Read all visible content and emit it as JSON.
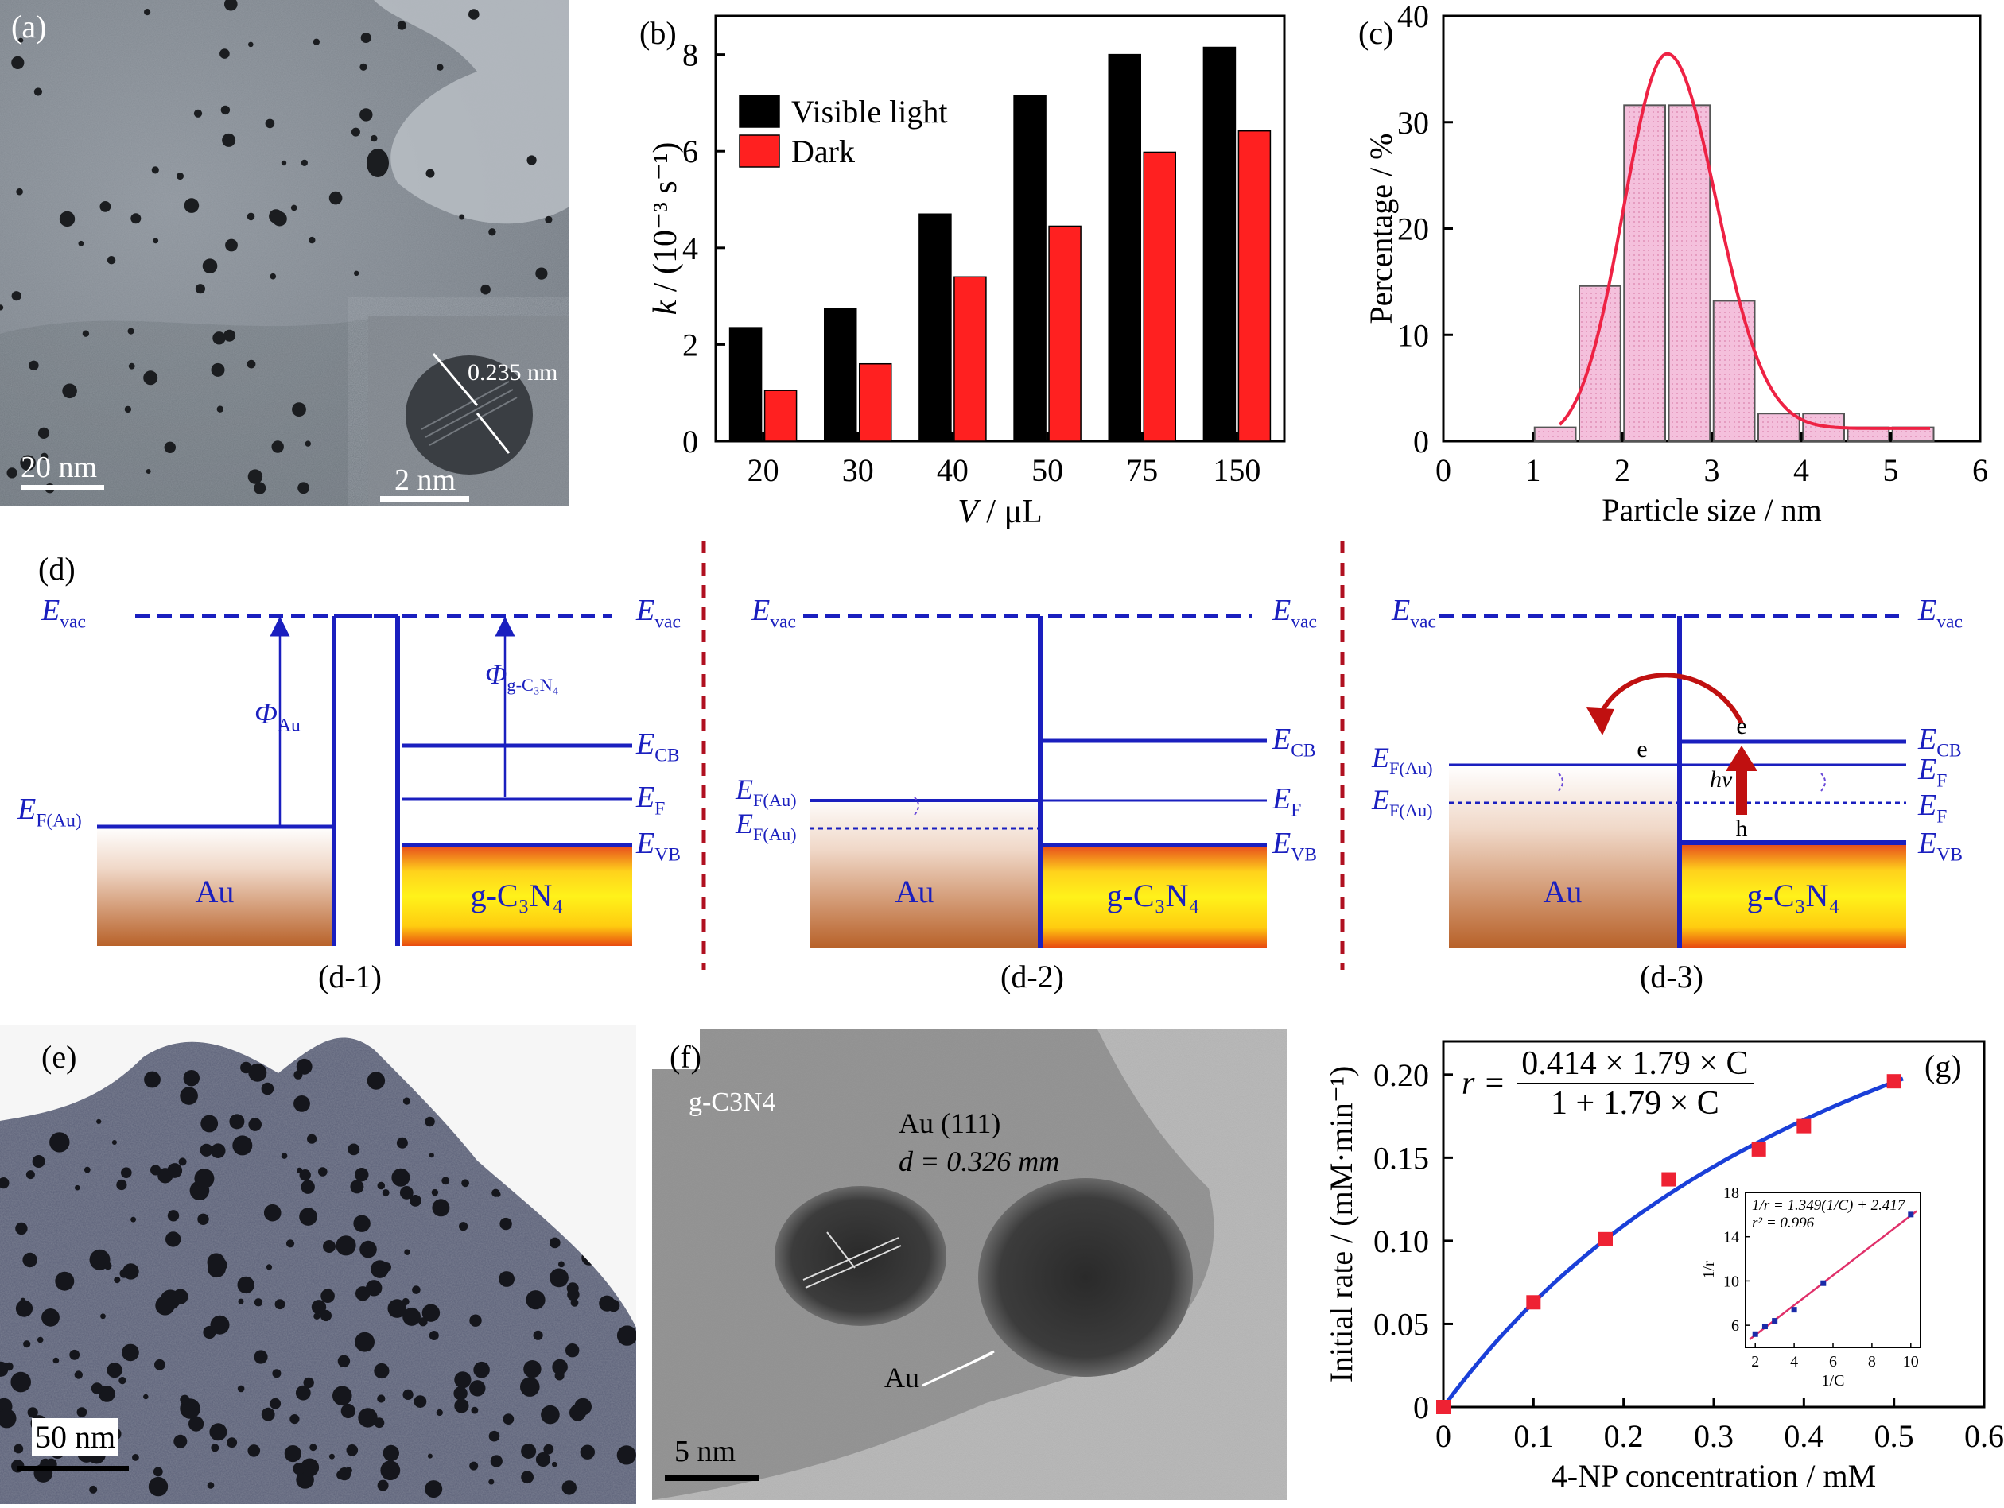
{
  "panels": {
    "a": {
      "label": "(a)",
      "scale_main": "20 nm",
      "scale_inset": "2 nm",
      "lattice": "0.235 nm"
    },
    "b": {
      "label": "(b)"
    },
    "c": {
      "label": "(c)"
    },
    "d": {
      "label": "(d)",
      "sub": [
        "(d-1)",
        "(d-2)",
        "(d-3)"
      ]
    },
    "e": {
      "label": "(e)",
      "scale": "50 nm"
    },
    "f": {
      "label": "(f)",
      "material": "g-C3N4",
      "plane": "Au (111)",
      "dspacing": "d = 0.326 mm",
      "au": "Au",
      "scale": "5 nm"
    },
    "g": {
      "label": "(g)",
      "equation_lhs": "r =",
      "equation_num": "0.414 × 1.79 × C",
      "equation_den": "1 + 1.79 × C",
      "inset_eq1": "1/r = 1.349(1/C) + 2.417",
      "inset_eq2": "r² = 0.996",
      "inset_ylabel": "1/r",
      "inset_xlabel": "1/C"
    }
  },
  "diagram": {
    "evac": "E",
    "evac_sub": "vac",
    "ecb": "E",
    "ecb_sub": "CB",
    "ef": "E",
    "ef_sub": "F",
    "evb": "E",
    "evb_sub": "VB",
    "efau_sub": "F(Au)",
    "phi": "Φ",
    "phi_au_sub": "Au",
    "phi_gcn_sub": "g-C₃N₄",
    "au": "Au",
    "gcn": "g-C₃N₄",
    "e": "e",
    "h": "h",
    "hv": "hv"
  },
  "chart_data": [
    {
      "type": "bar",
      "panel": "b",
      "categories": [
        "20",
        "30",
        "40",
        "50",
        "75",
        "150"
      ],
      "series": [
        {
          "name": "Visible light",
          "color": "#000000",
          "values": [
            2.35,
            2.75,
            4.7,
            7.15,
            8.0,
            8.15
          ]
        },
        {
          "name": "Dark",
          "color": "#ff2020",
          "values": [
            1.05,
            1.6,
            3.4,
            4.45,
            5.98,
            6.42
          ]
        }
      ],
      "xlabel": "V / μL",
      "ylabel": "k / (10⁻³ s⁻¹)",
      "ylim": [
        0,
        8.8
      ],
      "yticks": [
        0,
        2,
        4,
        6,
        8
      ],
      "legend": "top-left"
    },
    {
      "type": "bar",
      "panel": "c",
      "x": [
        1.25,
        1.75,
        2.25,
        2.75,
        3.25,
        3.75,
        4.25,
        4.75,
        5.25
      ],
      "values": [
        1.3,
        14.6,
        31.6,
        31.6,
        13.2,
        2.6,
        2.6,
        1.3,
        1.3
      ],
      "bin_width": 0.5,
      "fit_curve": "gaussian",
      "fit_center": 2.5,
      "fit_peak": 35.3,
      "xlabel": "Particle size / nm",
      "ylabel": "Percentage / %",
      "xlim": [
        0,
        6
      ],
      "ylim": [
        0,
        40
      ],
      "xticks": [
        0,
        1,
        2,
        3,
        4,
        5,
        6
      ],
      "yticks": [
        0,
        10,
        20,
        30,
        40
      ]
    },
    {
      "type": "scatter",
      "panel": "g",
      "x": [
        0,
        0.1,
        0.18,
        0.25,
        0.35,
        0.4,
        0.5
      ],
      "y": [
        0,
        0.063,
        0.101,
        0.137,
        0.155,
        0.169,
        0.196
      ],
      "fit": {
        "a": 0.414,
        "b": 1.79
      },
      "xlabel": "4-NP concentration / mM",
      "ylabel": "Initial rate / (mM·min⁻¹)",
      "xlim": [
        0,
        0.6
      ],
      "ylim": [
        0,
        0.22
      ],
      "xticks": [
        "0",
        "0.1",
        "0.2",
        "0.3",
        "0.4",
        "0.5",
        "0.6"
      ],
      "yticks": [
        "0",
        "0.05",
        "0.10",
        "0.15",
        "0.20"
      ],
      "inset": {
        "x": [
          2,
          2.5,
          3,
          4,
          5.5,
          10
        ],
        "y": [
          5.2,
          5.9,
          6.4,
          7.4,
          9.8,
          16.0
        ],
        "xticks": [
          "2",
          "4",
          "6",
          "8",
          "10"
        ],
        "yticks": [
          "6",
          "10",
          "14",
          "18"
        ],
        "xlim": [
          1.5,
          10.5
        ],
        "ylim": [
          4,
          18
        ]
      }
    }
  ]
}
